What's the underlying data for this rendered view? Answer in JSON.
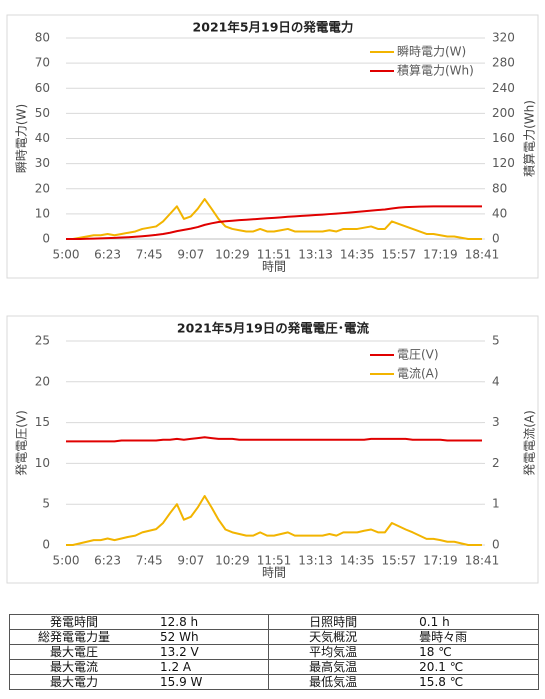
{
  "chart_data": [
    {
      "type": "line",
      "title": "2021年5月19日の発電電力",
      "xlabel": "時間",
      "ylabel": "瞬時電力(W)",
      "y2label": "積算電力(Wh)",
      "categories": [
        "5:00",
        null,
        null,
        null,
        null,
        null,
        "6:23",
        null,
        null,
        null,
        null,
        null,
        "7:45",
        null,
        null,
        null,
        null,
        null,
        "9:07",
        null,
        null,
        null,
        null,
        null,
        "10:29",
        null,
        null,
        null,
        null,
        null,
        "11:51",
        null,
        null,
        null,
        null,
        null,
        "13:13",
        null,
        null,
        null,
        null,
        null,
        "14:35",
        null,
        null,
        null,
        null,
        null,
        "15:57",
        null,
        null,
        null,
        null,
        null,
        "17:19",
        null,
        null,
        null,
        null,
        null,
        "18:41"
      ],
      "series": [
        {
          "name": "瞬時電力(W)",
          "color": "#f2b400",
          "axis": "y",
          "values": [
            0,
            0,
            0.5,
            1,
            1.5,
            1.5,
            2,
            1.5,
            2,
            2.5,
            3,
            4,
            4.5,
            5,
            7,
            10,
            13,
            8,
            9,
            12,
            15.9,
            12,
            8,
            5,
            4,
            3.5,
            3,
            3,
            4,
            3,
            3,
            3.5,
            4,
            3,
            3,
            3,
            3,
            3,
            3.5,
            3,
            4,
            4,
            4,
            4.5,
            5,
            4,
            4,
            7,
            6,
            5,
            4,
            3,
            2,
            2,
            1.5,
            1,
            1,
            0.5,
            0,
            0,
            0
          ]
        },
        {
          "name": "積算電力(Wh)",
          "color": "#e00000",
          "axis": "y2",
          "values": [
            0,
            0,
            0.1,
            0.3,
            0.6,
            1,
            1.4,
            1.8,
            2.3,
            2.8,
            3.5,
            4.4,
            5.4,
            6.5,
            8,
            10,
            12.5,
            14.5,
            16.5,
            19,
            22.5,
            25,
            27,
            28.2,
            29.1,
            30,
            30.7,
            31.4,
            32.3,
            33,
            33.7,
            34.5,
            35.4,
            36.1,
            36.8,
            37.5,
            38.2,
            38.9,
            39.7,
            40.4,
            41.3,
            42.2,
            43.1,
            44.1,
            45.2,
            46.1,
            47,
            48.6,
            50,
            50.7,
            51.2,
            51.6,
            51.8,
            51.9,
            52,
            52,
            52,
            52,
            52,
            52,
            52
          ]
        }
      ],
      "ylim": [
        0,
        80
      ],
      "yticks": [
        0,
        10,
        20,
        30,
        40,
        50,
        60,
        70,
        80
      ],
      "y2lim": [
        0,
        320
      ],
      "y2ticks": [
        0,
        40,
        80,
        120,
        160,
        200,
        240,
        280,
        320
      ],
      "grid": true,
      "legend": "upper right"
    },
    {
      "type": "line",
      "title": "2021年5月19日の発電電圧･電流",
      "xlabel": "時間",
      "ylabel": "発電電圧(V)",
      "y2label": "発電電流(A)",
      "categories": [
        "5:00",
        null,
        null,
        null,
        null,
        null,
        "6:23",
        null,
        null,
        null,
        null,
        null,
        "7:45",
        null,
        null,
        null,
        null,
        null,
        "9:07",
        null,
        null,
        null,
        null,
        null,
        "10:29",
        null,
        null,
        null,
        null,
        null,
        "11:51",
        null,
        null,
        null,
        null,
        null,
        "13:13",
        null,
        null,
        null,
        null,
        null,
        "14:35",
        null,
        null,
        null,
        null,
        null,
        "15:57",
        null,
        null,
        null,
        null,
        null,
        "17:19",
        null,
        null,
        null,
        null,
        null,
        "18:41"
      ],
      "series": [
        {
          "name": "電圧(V)",
          "color": "#e00000",
          "axis": "y",
          "values": [
            12.7,
            12.7,
            12.7,
            12.7,
            12.7,
            12.7,
            12.7,
            12.7,
            12.8,
            12.8,
            12.8,
            12.8,
            12.8,
            12.8,
            12.9,
            12.9,
            13,
            12.9,
            13,
            13.1,
            13.2,
            13.1,
            13,
            13,
            13,
            12.9,
            12.9,
            12.9,
            12.9,
            12.9,
            12.9,
            12.9,
            12.9,
            12.9,
            12.9,
            12.9,
            12.9,
            12.9,
            12.9,
            12.9,
            12.9,
            12.9,
            12.9,
            12.9,
            13,
            13,
            13,
            13,
            13,
            13,
            12.9,
            12.9,
            12.9,
            12.9,
            12.9,
            12.8,
            12.8,
            12.8,
            12.8,
            12.8,
            12.8
          ]
        },
        {
          "name": "電流(A)",
          "color": "#f2b400",
          "axis": "y2",
          "values": [
            0,
            0,
            0.04,
            0.08,
            0.12,
            0.12,
            0.16,
            0.12,
            0.16,
            0.2,
            0.23,
            0.31,
            0.35,
            0.39,
            0.54,
            0.78,
            1,
            0.62,
            0.69,
            0.92,
            1.2,
            0.92,
            0.62,
            0.38,
            0.31,
            0.27,
            0.23,
            0.23,
            0.31,
            0.23,
            0.23,
            0.27,
            0.31,
            0.23,
            0.23,
            0.23,
            0.23,
            0.23,
            0.27,
            0.23,
            0.31,
            0.31,
            0.31,
            0.35,
            0.38,
            0.31,
            0.31,
            0.54,
            0.46,
            0.38,
            0.31,
            0.23,
            0.15,
            0.15,
            0.12,
            0.08,
            0.08,
            0.04,
            0,
            0,
            0
          ]
        }
      ],
      "ylim": [
        0,
        25
      ],
      "yticks": [
        0,
        5,
        10,
        15,
        20,
        25
      ],
      "y2lim": [
        0,
        5
      ],
      "y2ticks": [
        0,
        1,
        2,
        3,
        4,
        5
      ],
      "grid": true,
      "legend": "upper right"
    }
  ],
  "table": {
    "rows": [
      [
        "発電時間",
        "12.8 h",
        "日照時間",
        "0.1 h"
      ],
      [
        "総発電電力量",
        "52 Wh",
        "天気概況",
        "曇時々雨"
      ],
      [
        "最大電圧",
        "13.2 V",
        "平均気温",
        "18 ℃"
      ],
      [
        "最大電流",
        "1.2 A",
        "最高気温",
        "20.1 ℃"
      ],
      [
        "最大電力",
        "15.9 W",
        "最低気温",
        "15.8 ℃"
      ]
    ]
  }
}
